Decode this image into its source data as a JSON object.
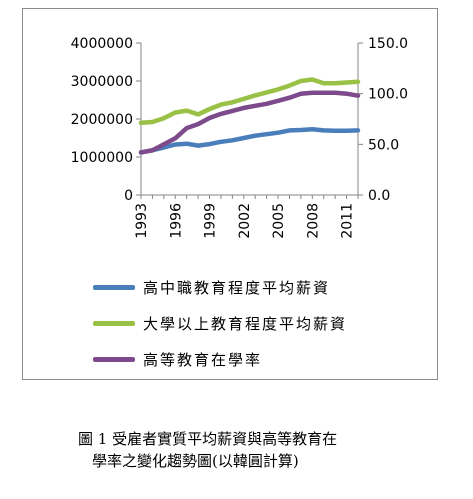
{
  "chart_data": {
    "type": "line",
    "x": [
      1993,
      1994,
      1995,
      1996,
      1997,
      1998,
      1999,
      2000,
      2001,
      2002,
      2003,
      2004,
      2005,
      2006,
      2007,
      2008,
      2009,
      2010,
      2011,
      2012
    ],
    "x_tick_labels": [
      "1993",
      "1996",
      "1999",
      "2002",
      "2005",
      "2008",
      "2011"
    ],
    "y_left": {
      "ylim": [
        0,
        4000000
      ],
      "ticks": [
        "0",
        "1000000",
        "2000000",
        "3000000",
        "4000000"
      ]
    },
    "y_right": {
      "ylim": [
        0,
        150
      ],
      "ticks": [
        "0.0",
        "50.0",
        "100.0",
        "150.0"
      ]
    },
    "series": [
      {
        "name": "高中職教育程度平均薪資",
        "axis": "left",
        "color": "#4a7ebb",
        "values": [
          1120000,
          1180000,
          1250000,
          1330000,
          1350000,
          1300000,
          1340000,
          1400000,
          1440000,
          1500000,
          1560000,
          1600000,
          1640000,
          1700000,
          1710000,
          1730000,
          1700000,
          1690000,
          1690000,
          1700000
        ]
      },
      {
        "name": "大學以上教育程度平均薪資",
        "axis": "left",
        "color": "#98c145",
        "values": [
          1900000,
          1920000,
          2020000,
          2170000,
          2220000,
          2120000,
          2260000,
          2380000,
          2440000,
          2530000,
          2620000,
          2700000,
          2780000,
          2880000,
          3000000,
          3040000,
          2940000,
          2940000,
          2960000,
          2980000
        ]
      },
      {
        "name": "高等教育在學率",
        "axis": "right",
        "color": "#7d4a8c",
        "values": [
          42,
          44,
          50,
          56,
          66,
          70,
          76,
          80,
          83,
          86,
          88,
          90,
          93,
          96,
          100,
          101,
          101,
          101,
          100,
          98
        ]
      }
    ]
  },
  "caption": {
    "line1": "圖 1  受雇者實質平均薪資與高等教育在",
    "line2": "學率之變化趨勢圖(以韓圓計算)"
  }
}
